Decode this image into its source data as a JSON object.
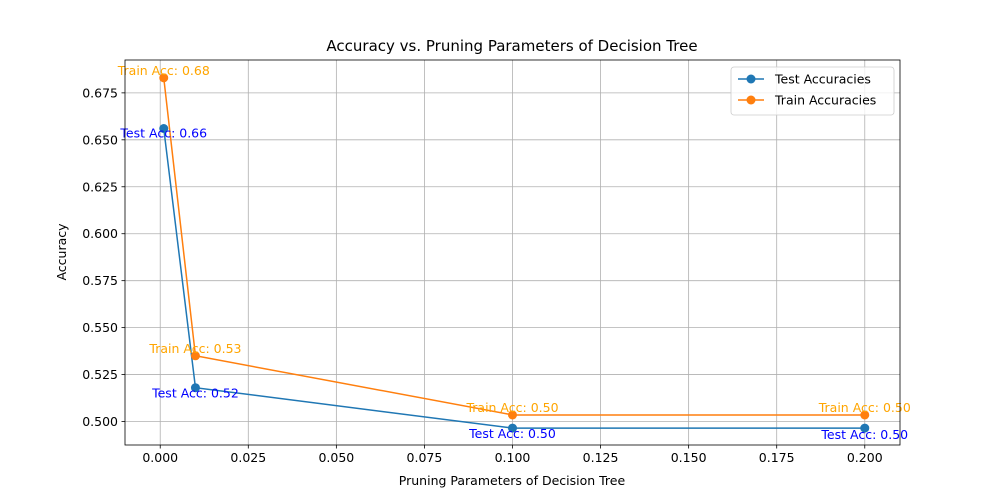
{
  "chart_data": {
    "type": "line",
    "title": "Accuracy vs. Pruning Parameters of Decision Tree",
    "xlabel": "Pruning Parameters of Decision Tree",
    "ylabel": "Accuracy",
    "xlim": [
      -0.01,
      0.21
    ],
    "ylim": [
      0.4875,
      0.6925
    ],
    "x_ticks": [
      0.0,
      0.025,
      0.05,
      0.075,
      0.1,
      0.125,
      0.15,
      0.175,
      0.2
    ],
    "x_tick_labels": [
      "0.000",
      "0.025",
      "0.050",
      "0.075",
      "0.100",
      "0.125",
      "0.150",
      "0.175",
      "0.200"
    ],
    "y_ticks": [
      0.5,
      0.525,
      0.55,
      0.575,
      0.6,
      0.625,
      0.65,
      0.675
    ],
    "y_tick_labels": [
      "0.500",
      "0.525",
      "0.550",
      "0.575",
      "0.600",
      "0.625",
      "0.650",
      "0.675"
    ],
    "grid": true,
    "legend_position": "top-right",
    "x": [
      0.001,
      0.01,
      0.1,
      0.2
    ],
    "series": [
      {
        "name": "Test Accuracies",
        "color": "#1f77b4",
        "annotation_color": "#0000ff",
        "values": [
          0.656,
          0.518,
          0.4965,
          0.4965
        ],
        "annotations": [
          "Test Acc: 0.66",
          "Test Acc: 0.52",
          "Test Acc: 0.50",
          "Test Acc: 0.50"
        ]
      },
      {
        "name": "Train Accuracies",
        "color": "#ff7f0e",
        "annotation_color": "#ffa500",
        "values": [
          0.683,
          0.535,
          0.5035,
          0.5035
        ],
        "annotations": [
          "Train Acc: 0.68",
          "Train Acc: 0.53",
          "Train Acc: 0.50",
          "Train Acc: 0.50"
        ]
      }
    ]
  }
}
